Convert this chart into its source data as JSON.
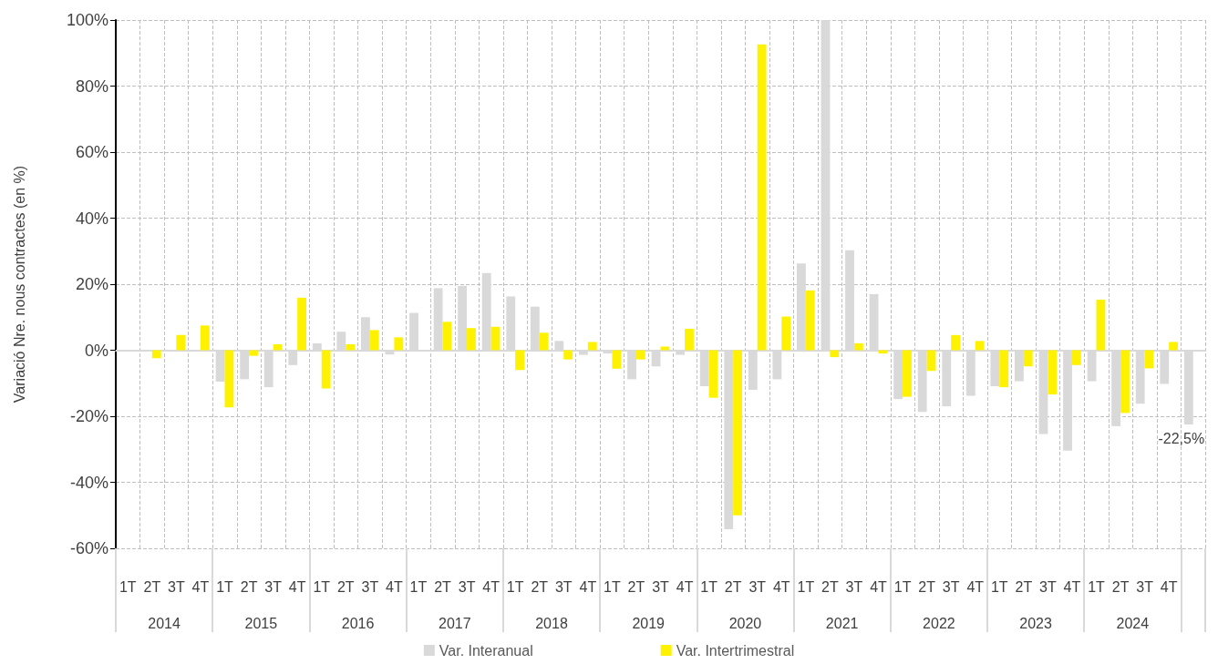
{
  "chart_data": {
    "type": "bar",
    "ylabel": "Variació Nre. nous contractes (en %)",
    "categories": [
      "1T",
      "2T",
      "3T",
      "4T",
      "1T",
      "2T",
      "3T",
      "4T",
      "1T",
      "2T",
      "3T",
      "4T",
      "1T",
      "2T",
      "3T",
      "4T",
      "1T",
      "2T",
      "3T",
      "4T",
      "1T",
      "2T",
      "3T",
      "4T",
      "1T",
      "2T",
      "3T",
      "4T",
      "1T",
      "2T",
      "3T",
      "4T",
      "1T",
      "2T",
      "3T",
      "4T",
      "1T",
      "2T",
      "3T",
      "4T",
      "1T",
      "2T",
      "3T",
      "4T",
      null
    ],
    "series": [
      {
        "name": "Var. Interanual",
        "color": "#d9d9d9",
        "values": [
          null,
          null,
          null,
          null,
          -9.5,
          -8.8,
          -11.2,
          -4.5,
          2.1,
          5.6,
          10.0,
          -1.3,
          11.3,
          18.8,
          19.5,
          23.4,
          16.3,
          13.2,
          2.8,
          -1.4,
          -1.0,
          -8.8,
          -4.9,
          -1.4,
          -10.9,
          -54.2,
          -12.0,
          -8.8,
          26.3,
          100,
          30.3,
          17.0,
          -14.8,
          -18.7,
          -17.0,
          -13.8,
          -10.9,
          -9.4,
          -25.4,
          -30.4,
          -9.4,
          -23.0,
          -16.2,
          -10.2,
          -22.5
        ],
        "value_labels": [
          null,
          null,
          null,
          null,
          null,
          null,
          null,
          null,
          null,
          null,
          null,
          null,
          null,
          null,
          null,
          null,
          null,
          null,
          null,
          null,
          null,
          null,
          null,
          null,
          null,
          null,
          null,
          null,
          null,
          null,
          null,
          null,
          null,
          null,
          null,
          null,
          null,
          null,
          null,
          null,
          null,
          null,
          null,
          null,
          "-22,5%"
        ]
      },
      {
        "name": "Var. Intertrimestral",
        "color": "#fff200",
        "values": [
          null,
          -2.4,
          4.6,
          7.5,
          -17.3,
          -1.7,
          1.8,
          15.9,
          -11.6,
          1.8,
          6.1,
          3.9,
          0,
          8.6,
          6.7,
          7.1,
          -6.0,
          5.3,
          -2.8,
          2.5,
          -5.6,
          -2.8,
          1.1,
          6.5,
          -14.4,
          -50.0,
          92.6,
          10.2,
          18.1,
          -2.1,
          2.1,
          -1.0,
          -14.1,
          -6.3,
          4.6,
          2.8,
          -11.2,
          -4.9,
          -13.4,
          -4.5,
          15.3,
          -19.0,
          -5.5,
          2.5,
          null
        ]
      }
    ],
    "annotations": [
      "2014",
      "2015",
      "2016",
      "2017",
      "2018",
      "2019",
      "2020",
      "2021",
      "2022",
      "2023",
      "2024"
    ],
    "ylim": [
      -60,
      100
    ],
    "yticks": [
      {
        "value": -60,
        "label": "-60%"
      },
      {
        "value": -40,
        "label": "-40%"
      },
      {
        "value": -20,
        "label": "-20%"
      },
      {
        "value": 0,
        "label": "0%"
      },
      {
        "value": 20,
        "label": "20%"
      },
      {
        "value": 40,
        "label": "40%"
      },
      {
        "value": 60,
        "label": "60%"
      },
      {
        "value": 80,
        "label": "80%"
      },
      {
        "value": 100,
        "label": "100%"
      }
    ],
    "grid": true,
    "legend": "bottom"
  }
}
